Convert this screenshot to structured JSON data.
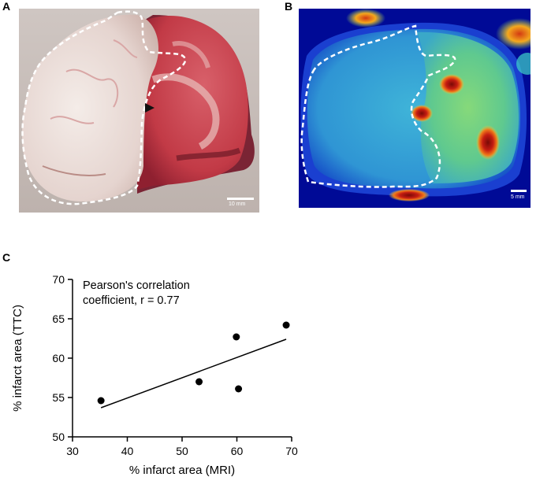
{
  "panels": {
    "a": {
      "label": "A",
      "scale_bar_text": "10 mm"
    },
    "b": {
      "label": "B",
      "scale_bar_text": "5 mm"
    },
    "c": {
      "label": "C"
    }
  },
  "colors": {
    "tissue_pale": "#eadcd6",
    "tissue_red": "#c9414c",
    "heatmap_background": "#000a96",
    "heatmap_cyan": "#34b4e0",
    "heatmap_green": "#6fd08a",
    "heatmap_hot": "#c0201a",
    "outline": "#ffffff"
  },
  "chart_data": {
    "type": "scatter",
    "title": "",
    "xlabel": "% infarct area (MRI)",
    "ylabel": "% infarct area (TTC)",
    "xlim": [
      30,
      70
    ],
    "ylim": [
      50,
      70
    ],
    "xticks": [
      30,
      40,
      50,
      60,
      70
    ],
    "yticks": [
      50,
      55,
      60,
      65,
      70
    ],
    "points": [
      {
        "x": 35.2,
        "y": 54.6
      },
      {
        "x": 53.1,
        "y": 57.0
      },
      {
        "x": 59.9,
        "y": 62.7
      },
      {
        "x": 60.3,
        "y": 56.1
      },
      {
        "x": 69.0,
        "y": 64.2
      }
    ],
    "fit_line": {
      "x1": 35.2,
      "y1": 53.7,
      "x2": 69.0,
      "y2": 62.4
    },
    "annotation_lines": [
      "Pearson's correlation",
      "coefficient, r = 0.77"
    ],
    "grid": false
  }
}
